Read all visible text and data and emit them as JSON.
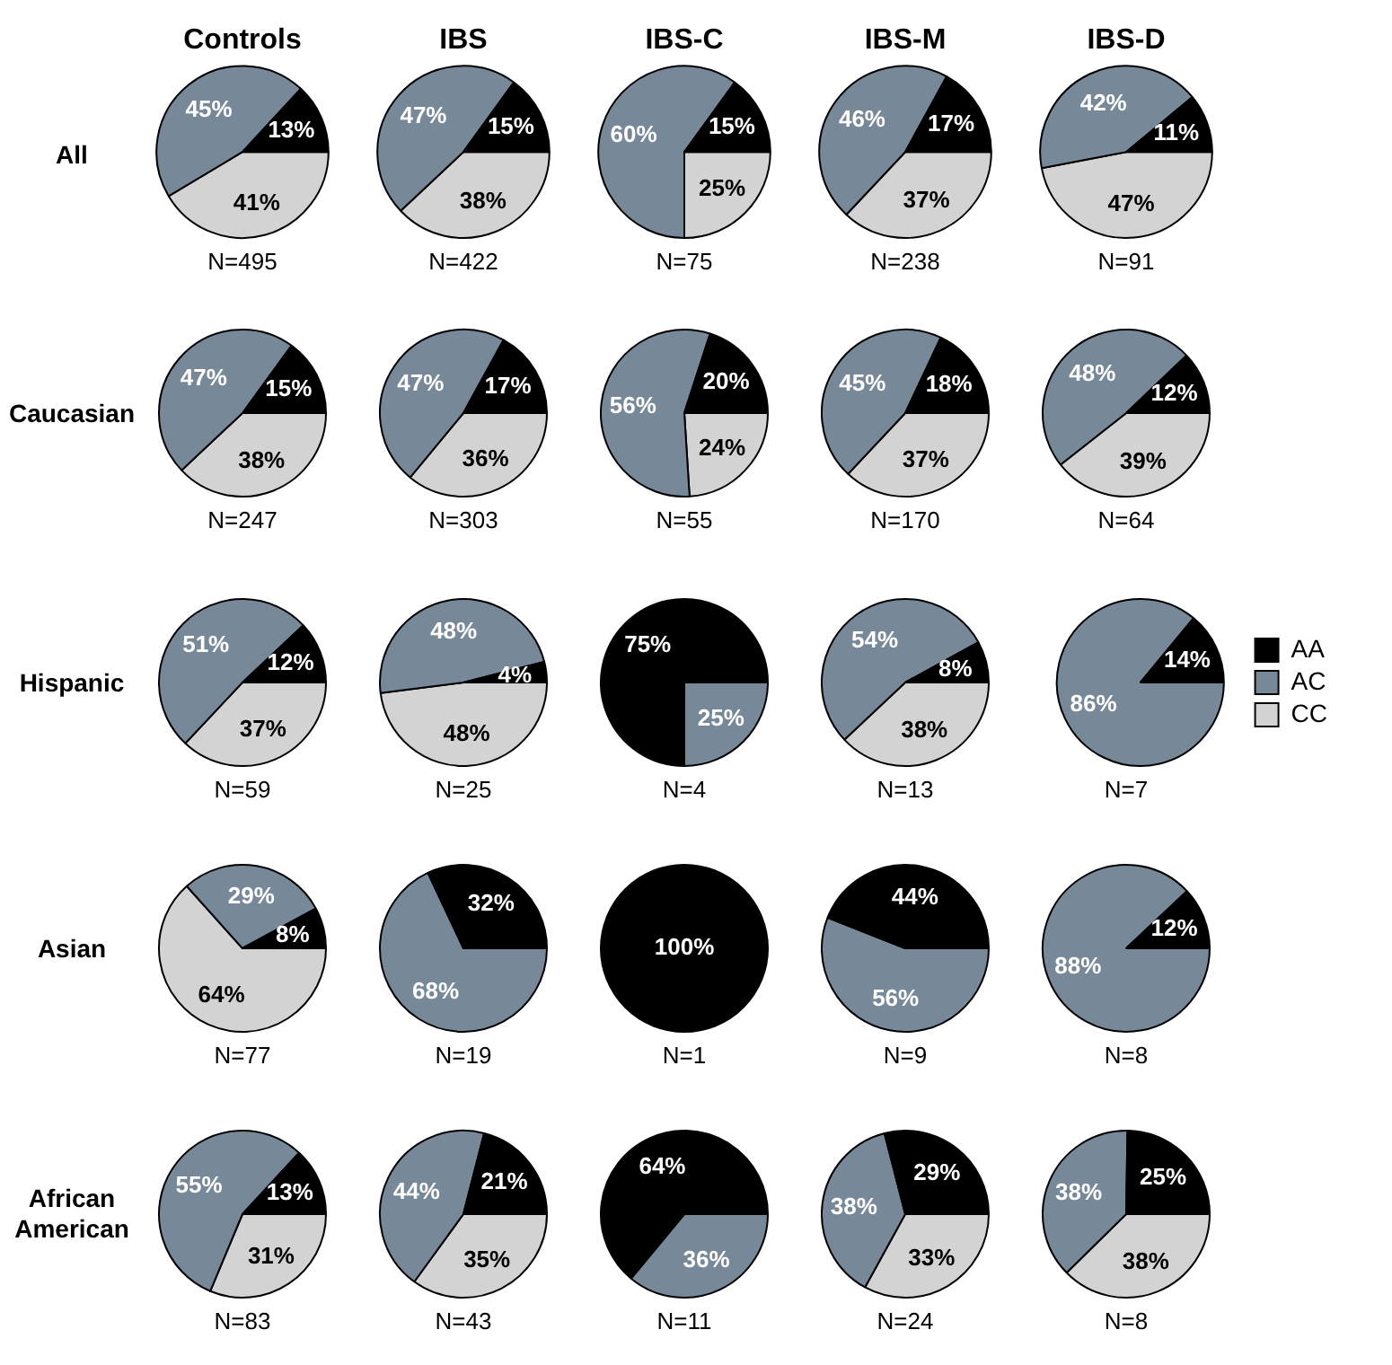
{
  "chart_data": [
    {
      "type": "pie",
      "title": "Controls",
      "ylabel": "All",
      "values": [
        13,
        45,
        41
      ],
      "value_labels": [
        "13%",
        "45%",
        "41%"
      ],
      "colors": [
        "#000000",
        "#778899",
        "#d3d3d3"
      ],
      "annotations": [
        "N=495"
      ]
    },
    {
      "type": "pie",
      "title": "IBS",
      "values": [
        15,
        47,
        38
      ],
      "value_labels": [
        "15%",
        "47%",
        "38%"
      ],
      "colors": [
        "#000000",
        "#778899",
        "#d3d3d3"
      ],
      "annotations": [
        "N=422"
      ]
    },
    {
      "type": "pie",
      "title": "IBS-C",
      "values": [
        15,
        60,
        25
      ],
      "value_labels": [
        "15%",
        "60%",
        "25%"
      ],
      "colors": [
        "#000000",
        "#778899",
        "#d3d3d3"
      ],
      "annotations": [
        "N=75"
      ]
    },
    {
      "type": "pie",
      "title": "IBS-M",
      "values": [
        17,
        46,
        37
      ],
      "value_labels": [
        "17%",
        "46%",
        "37%"
      ],
      "colors": [
        "#000000",
        "#778899",
        "#d3d3d3"
      ],
      "annotations": [
        "N=238"
      ]
    },
    {
      "type": "pie",
      "title": "IBS-D",
      "values": [
        11,
        42,
        47
      ],
      "value_labels": [
        "11%",
        "42%",
        "47%"
      ],
      "colors": [
        "#000000",
        "#778899",
        "#d3d3d3"
      ],
      "annotations": [
        "N=91"
      ]
    },
    {
      "type": "pie",
      "ylabel": "Caucasian",
      "values": [
        15,
        47,
        38
      ],
      "value_labels": [
        "15%",
        "47%",
        "38%"
      ],
      "colors": [
        "#000000",
        "#778899",
        "#d3d3d3"
      ],
      "annotations": [
        "N=247"
      ]
    },
    {
      "type": "pie",
      "values": [
        17,
        47,
        36
      ],
      "value_labels": [
        "17%",
        "47%",
        "36%"
      ],
      "colors": [
        "#000000",
        "#778899",
        "#d3d3d3"
      ],
      "annotations": [
        "N=303"
      ]
    },
    {
      "type": "pie",
      "values": [
        20,
        56,
        24
      ],
      "value_labels": [
        "20%",
        "56%",
        "24%"
      ],
      "colors": [
        "#000000",
        "#778899",
        "#d3d3d3"
      ],
      "annotations": [
        "N=55"
      ]
    },
    {
      "type": "pie",
      "values": [
        18,
        45,
        37
      ],
      "value_labels": [
        "18%",
        "45%",
        "37%"
      ],
      "colors": [
        "#000000",
        "#778899",
        "#d3d3d3"
      ],
      "annotations": [
        "N=170"
      ]
    },
    {
      "type": "pie",
      "values": [
        12,
        48,
        39
      ],
      "value_labels": [
        "12%",
        "48%",
        "39%"
      ],
      "colors": [
        "#000000",
        "#778899",
        "#d3d3d3"
      ],
      "annotations": [
        "N=64"
      ]
    },
    {
      "type": "pie",
      "ylabel": "Hispanic",
      "values": [
        12,
        51,
        37
      ],
      "value_labels": [
        "12%",
        "51%",
        "37%"
      ],
      "colors": [
        "#000000",
        "#778899",
        "#d3d3d3"
      ],
      "annotations": [
        "N=59"
      ]
    },
    {
      "type": "pie",
      "values": [
        4,
        48,
        48
      ],
      "value_labels": [
        "4%",
        "48%",
        "48%"
      ],
      "colors": [
        "#000000",
        "#778899",
        "#d3d3d3"
      ],
      "annotations": [
        "N=25"
      ]
    },
    {
      "type": "pie",
      "values": [
        75,
        25,
        0
      ],
      "value_labels": [
        "75%",
        "25%",
        null
      ],
      "colors": [
        "#000000",
        "#778899",
        "#d3d3d3"
      ],
      "annotations": [
        "N=4"
      ]
    },
    {
      "type": "pie",
      "values": [
        8,
        54,
        38
      ],
      "value_labels": [
        "8%",
        "54%",
        "38%"
      ],
      "colors": [
        "#000000",
        "#778899",
        "#d3d3d3"
      ],
      "annotations": [
        "N=13"
      ]
    },
    {
      "type": "pie",
      "categories": [
        "AA",
        "AC",
        "CC"
      ],
      "values": [
        14,
        86,
        0
      ],
      "value_labels": [
        "14%",
        "86%",
        null
      ],
      "colors": [
        "#000000",
        "#778899",
        "#d3d3d3"
      ],
      "annotations": [
        "N=7"
      ],
      "legend": "right"
    },
    {
      "type": "pie",
      "ylabel": "Asian",
      "values": [
        8,
        29,
        64
      ],
      "value_labels": [
        "8%",
        "29%",
        "64%"
      ],
      "colors": [
        "#000000",
        "#778899",
        "#d3d3d3"
      ],
      "annotations": [
        "N=77"
      ]
    },
    {
      "type": "pie",
      "values": [
        32,
        68,
        0
      ],
      "value_labels": [
        "32%",
        "68%",
        null
      ],
      "colors": [
        "#000000",
        "#778899",
        "#d3d3d3"
      ],
      "annotations": [
        "N=19"
      ]
    },
    {
      "type": "pie",
      "values": [
        100,
        0,
        0
      ],
      "value_labels": [
        "100%",
        null,
        null
      ],
      "colors": [
        "#000000",
        "#778899",
        "#d3d3d3"
      ],
      "annotations": [
        "N=1"
      ]
    },
    {
      "type": "pie",
      "values": [
        44,
        56,
        0
      ],
      "value_labels": [
        "44%",
        "56%",
        null
      ],
      "colors": [
        "#000000",
        "#778899",
        "#d3d3d3"
      ],
      "annotations": [
        "N=9"
      ]
    },
    {
      "type": "pie",
      "values": [
        12,
        88,
        0
      ],
      "value_labels": [
        "12%",
        "88%",
        null
      ],
      "colors": [
        "#000000",
        "#778899",
        "#d3d3d3"
      ],
      "annotations": [
        "N=8"
      ]
    },
    {
      "type": "pie",
      "ylabel": "African American",
      "values": [
        13,
        55,
        31
      ],
      "value_labels": [
        "13%",
        "55%",
        "31%"
      ],
      "colors": [
        "#000000",
        "#778899",
        "#d3d3d3"
      ],
      "annotations": [
        "N=83"
      ]
    },
    {
      "type": "pie",
      "values": [
        21,
        44,
        35
      ],
      "value_labels": [
        "21%",
        "44%",
        "35%"
      ],
      "colors": [
        "#000000",
        "#778899",
        "#d3d3d3"
      ],
      "annotations": [
        "N=43"
      ]
    },
    {
      "type": "pie",
      "values": [
        64,
        36,
        0
      ],
      "value_labels": [
        "64%",
        "36%",
        null
      ],
      "colors": [
        "#000000",
        "#778899",
        "#d3d3d3"
      ],
      "annotations": [
        "N=11"
      ]
    },
    {
      "type": "pie",
      "values": [
        29,
        38,
        33
      ],
      "value_labels": [
        "29%",
        "38%",
        "33%"
      ],
      "colors": [
        "#000000",
        "#778899",
        "#d3d3d3"
      ],
      "annotations": [
        "N=24"
      ]
    },
    {
      "type": "pie",
      "values": [
        25,
        38,
        38
      ],
      "value_labels": [
        "25%",
        "38%",
        "38%"
      ],
      "colors": [
        "#000000",
        "#778899",
        "#d3d3d3"
      ],
      "annotations": [
        "N=8"
      ]
    }
  ]
}
